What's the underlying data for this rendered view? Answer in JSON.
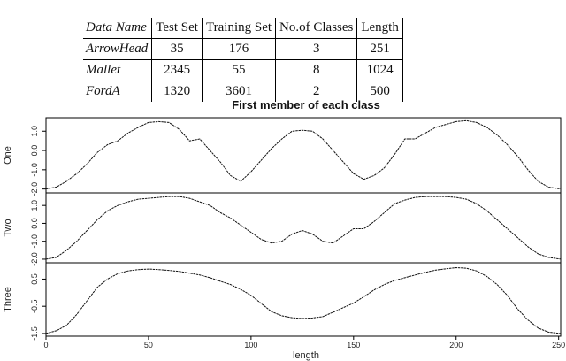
{
  "table": {
    "headers": [
      "Data Name",
      "Test Set",
      "Training Set",
      "No.of Classes",
      "Length"
    ],
    "rows": [
      [
        "ArrowHead",
        "35",
        "176",
        "3",
        "251"
      ],
      [
        "Mallet",
        "2345",
        "55",
        "8",
        "1024"
      ],
      [
        "FordA",
        "1320",
        "3601",
        "2",
        "500"
      ]
    ]
  },
  "chart_data": {
    "type": "line",
    "title": "First member of each class",
    "xlabel": "length",
    "xlim": [
      0,
      251
    ],
    "x_ticks": [
      0,
      50,
      100,
      150,
      200,
      250
    ],
    "grid": false,
    "legend": "none",
    "panels": [
      {
        "name": "One",
        "ylim": [
          -2.2,
          1.7
        ],
        "y_ticks": [
          1.0,
          0.0,
          -1.0,
          -2.0
        ],
        "y_tick_labels": [
          "1.0",
          "0.0",
          "-1.0",
          "-2.0"
        ],
        "x": [
          0,
          5,
          10,
          15,
          20,
          25,
          30,
          35,
          40,
          45,
          50,
          55,
          60,
          65,
          70,
          75,
          80,
          85,
          90,
          95,
          100,
          105,
          110,
          115,
          120,
          125,
          130,
          135,
          140,
          145,
          150,
          155,
          160,
          165,
          170,
          175,
          180,
          185,
          190,
          195,
          200,
          205,
          210,
          215,
          220,
          225,
          230,
          235,
          240,
          245,
          251
        ],
        "y": [
          -2.0,
          -1.9,
          -1.6,
          -1.2,
          -0.7,
          -0.1,
          0.3,
          0.5,
          0.9,
          1.2,
          1.45,
          1.5,
          1.45,
          1.1,
          0.5,
          0.6,
          0.0,
          -0.6,
          -1.3,
          -1.6,
          -1.1,
          -0.5,
          0.1,
          0.6,
          1.0,
          1.05,
          1.0,
          0.6,
          0.0,
          -0.6,
          -1.2,
          -1.5,
          -1.3,
          -0.9,
          -0.2,
          0.6,
          0.6,
          0.9,
          1.2,
          1.35,
          1.5,
          1.55,
          1.45,
          1.2,
          0.8,
          0.3,
          -0.3,
          -1.0,
          -1.6,
          -1.9,
          -2.0
        ]
      },
      {
        "name": "Two",
        "ylim": [
          -2.2,
          1.7
        ],
        "y_ticks": [
          1.0,
          0.0,
          -1.0,
          -2.0
        ],
        "y_tick_labels": [
          "1.0",
          "0.0",
          "-1.0",
          "-2.0"
        ],
        "x": [
          0,
          5,
          10,
          15,
          20,
          25,
          30,
          35,
          40,
          45,
          50,
          55,
          60,
          65,
          70,
          75,
          80,
          85,
          90,
          95,
          100,
          105,
          110,
          115,
          120,
          125,
          130,
          135,
          140,
          145,
          150,
          155,
          160,
          165,
          170,
          175,
          180,
          185,
          190,
          195,
          200,
          205,
          210,
          215,
          220,
          225,
          230,
          235,
          240,
          245,
          251
        ],
        "y": [
          -2.0,
          -1.9,
          -1.5,
          -1.0,
          -0.4,
          0.2,
          0.7,
          1.0,
          1.2,
          1.35,
          1.4,
          1.45,
          1.5,
          1.5,
          1.4,
          1.2,
          1.0,
          0.6,
          0.3,
          -0.1,
          -0.5,
          -0.9,
          -1.1,
          -1.0,
          -0.6,
          -0.4,
          -0.6,
          -1.0,
          -1.1,
          -0.7,
          -0.3,
          -0.3,
          0.1,
          0.6,
          1.1,
          1.3,
          1.45,
          1.5,
          1.5,
          1.5,
          1.45,
          1.35,
          1.1,
          0.7,
          0.2,
          -0.3,
          -0.8,
          -1.3,
          -1.7,
          -1.9,
          -2.0
        ]
      },
      {
        "name": "Three",
        "ylim": [
          -1.6,
          1.1
        ],
        "y_ticks": [
          0.5,
          -0.5,
          -1.5
        ],
        "y_tick_labels": [
          "0.5",
          "-0.5",
          "-1.5"
        ],
        "x": [
          0,
          5,
          10,
          15,
          20,
          25,
          30,
          35,
          40,
          45,
          50,
          55,
          60,
          65,
          70,
          75,
          80,
          85,
          90,
          95,
          100,
          105,
          110,
          115,
          120,
          125,
          130,
          135,
          140,
          145,
          150,
          155,
          160,
          165,
          170,
          175,
          180,
          185,
          190,
          195,
          200,
          205,
          210,
          215,
          220,
          225,
          230,
          235,
          240,
          245,
          251
        ],
        "y": [
          -1.5,
          -1.4,
          -1.2,
          -0.8,
          -0.3,
          0.2,
          0.5,
          0.7,
          0.8,
          0.85,
          0.87,
          0.85,
          0.82,
          0.78,
          0.72,
          0.65,
          0.55,
          0.42,
          0.3,
          0.12,
          -0.1,
          -0.4,
          -0.7,
          -0.85,
          -0.92,
          -0.95,
          -0.93,
          -0.88,
          -0.72,
          -0.55,
          -0.38,
          -0.15,
          0.1,
          0.3,
          0.45,
          0.55,
          0.65,
          0.75,
          0.83,
          0.88,
          0.92,
          0.9,
          0.8,
          0.6,
          0.3,
          -0.1,
          -0.6,
          -1.0,
          -1.3,
          -1.45,
          -1.5
        ]
      }
    ]
  }
}
